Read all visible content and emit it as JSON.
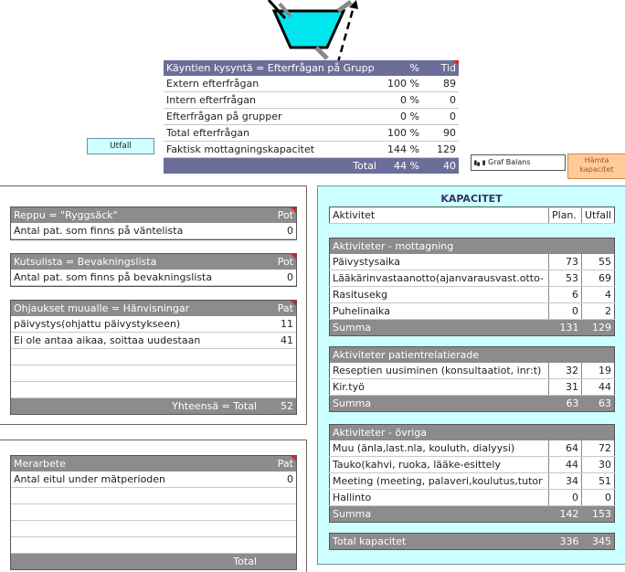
{
  "demand": {
    "header": [
      "Käyntien kysyntä = Efterfrågan på Grupp",
      "%",
      "Tid"
    ],
    "rows": [
      [
        "Extern efterfrågan",
        "100 %",
        "89"
      ],
      [
        "Intern efterfrågan",
        "0 %",
        "0"
      ],
      [
        "Efterfrågan på grupper",
        "0 %",
        "0"
      ],
      [
        "Total efterfrågan",
        "100 %",
        "90"
      ],
      [
        "Faktisk mottagningskapacitet",
        "144 %",
        "129"
      ]
    ],
    "total": [
      "Total",
      "44 %",
      "40"
    ]
  },
  "buttons": {
    "utfall": "Utfall",
    "graf": "Graf Balans",
    "hamta_line1": "Hämta",
    "hamta_line2": "kapacitet"
  },
  "reppu": {
    "header": [
      "Reppu = \"Ryggsäck\"",
      "Pot"
    ],
    "rows": [
      [
        "Antal pat. som finns på väntelista",
        "0"
      ]
    ]
  },
  "kutsulista": {
    "header": [
      "Kutsulista = Bevakningslista",
      "Pot"
    ],
    "rows": [
      [
        "Antal pat. som finns på bevakningslista",
        "0"
      ]
    ]
  },
  "ohjaukset": {
    "header": [
      "Ohjaukset muualle = Hänvisningar",
      "Pat"
    ],
    "rows": [
      [
        "päivystys(ohjattu päivystykseen)",
        "11"
      ],
      [
        "Ei ole antaa aikaa, soittaa uudestaan",
        "41"
      ],
      [
        "",
        ""
      ],
      [
        "",
        ""
      ],
      [
        "",
        ""
      ]
    ],
    "total": [
      "Yhteensä = Total",
      "52"
    ]
  },
  "merarbete": {
    "header": [
      "Merarbete",
      "Pat"
    ],
    "rows": [
      [
        "Antal eitul under mätperioden",
        "0"
      ],
      [
        "",
        ""
      ],
      [
        "",
        ""
      ],
      [
        "",
        ""
      ],
      [
        "",
        ""
      ]
    ],
    "total": [
      "Total",
      ""
    ]
  },
  "kapacitet": {
    "title": "KAPACITET",
    "header": [
      "Aktivitet",
      "Plan.",
      "Utfall"
    ],
    "groups": [
      {
        "title": "Aktiviteter - mottagning",
        "rows": [
          [
            "Päivystysaika",
            "73",
            "55"
          ],
          [
            "Lääkärinvastaanotto(ajanvarausvast.otto-",
            "53",
            "69"
          ],
          [
            "Rasitusekg",
            "6",
            "4"
          ],
          [
            "Puhelinaika",
            "0",
            "2"
          ]
        ],
        "sum": [
          "Summa",
          "131",
          "129"
        ]
      },
      {
        "title": "Aktiviteter patientrelatierade",
        "rows": [
          [
            "Reseptien uusiminen (konsultaatiot, inr:t)",
            "32",
            "19"
          ],
          [
            "Kir.työ",
            "31",
            "44"
          ]
        ],
        "sum": [
          "Summa",
          "63",
          "63"
        ]
      },
      {
        "title": "Aktiviteter - övriga",
        "rows": [
          [
            "Muu (änla,last.nla, kouluth, dialyysi)",
            "64",
            "72"
          ],
          [
            "Tauko(kahvi, ruoka, lääke-esittely",
            "44",
            "30"
          ],
          [
            "Meeting (meeting, palaveri,koulutus,tutor",
            "34",
            "51"
          ],
          [
            "Hallinto",
            "0",
            "0"
          ]
        ],
        "sum": [
          "Summa",
          "142",
          "153"
        ]
      }
    ],
    "total": [
      "Total kapacitet",
      "336",
      "345"
    ]
  }
}
